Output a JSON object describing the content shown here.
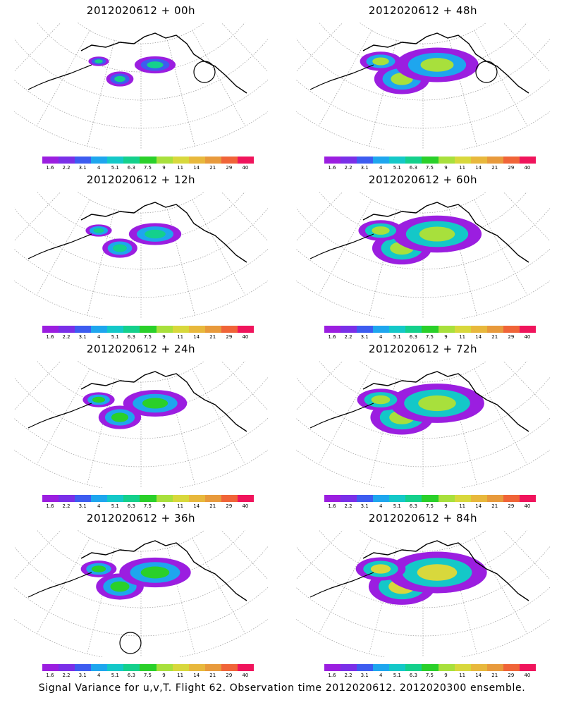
{
  "panels": [
    {
      "title": "2012020612 + 00h",
      "lead": 0,
      "level": 0.15,
      "circle": true
    },
    {
      "title": "2012020612 + 48h",
      "lead": 48,
      "level": 0.7,
      "circle": true
    },
    {
      "title": "2012020612 + 12h",
      "lead": 12,
      "level": 0.3,
      "circle": false
    },
    {
      "title": "2012020612 + 60h",
      "lead": 60,
      "level": 0.78,
      "circle": false
    },
    {
      "title": "2012020612 + 24h",
      "lead": 24,
      "level": 0.45,
      "circle": false
    },
    {
      "title": "2012020612 + 72h",
      "lead": 72,
      "level": 0.85,
      "circle": false
    },
    {
      "title": "2012020612 + 36h",
      "lead": 36,
      "level": 0.55,
      "circle": true
    },
    {
      "title": "2012020612 + 84h",
      "lead": 84,
      "level": 0.92,
      "circle": false
    }
  ],
  "colorbar": {
    "colors": [
      "#9b1ee0",
      "#7a2fe8",
      "#3d5cf0",
      "#1ea6ee",
      "#14c8c8",
      "#14d08c",
      "#2ad02a",
      "#a8e03c",
      "#d8d83c",
      "#e8b83c",
      "#e89a3c",
      "#f06438",
      "#f0145c"
    ],
    "ticks": [
      "1.6",
      "2.2",
      "3.1",
      "4",
      "5.1",
      "6.3",
      "7.5",
      "9",
      "11",
      "14",
      "21",
      "29",
      "40"
    ]
  },
  "footer": "Signal Variance for u,v,T. Flight 62. Observation time 2012020612. 2012020300 ensemble."
}
